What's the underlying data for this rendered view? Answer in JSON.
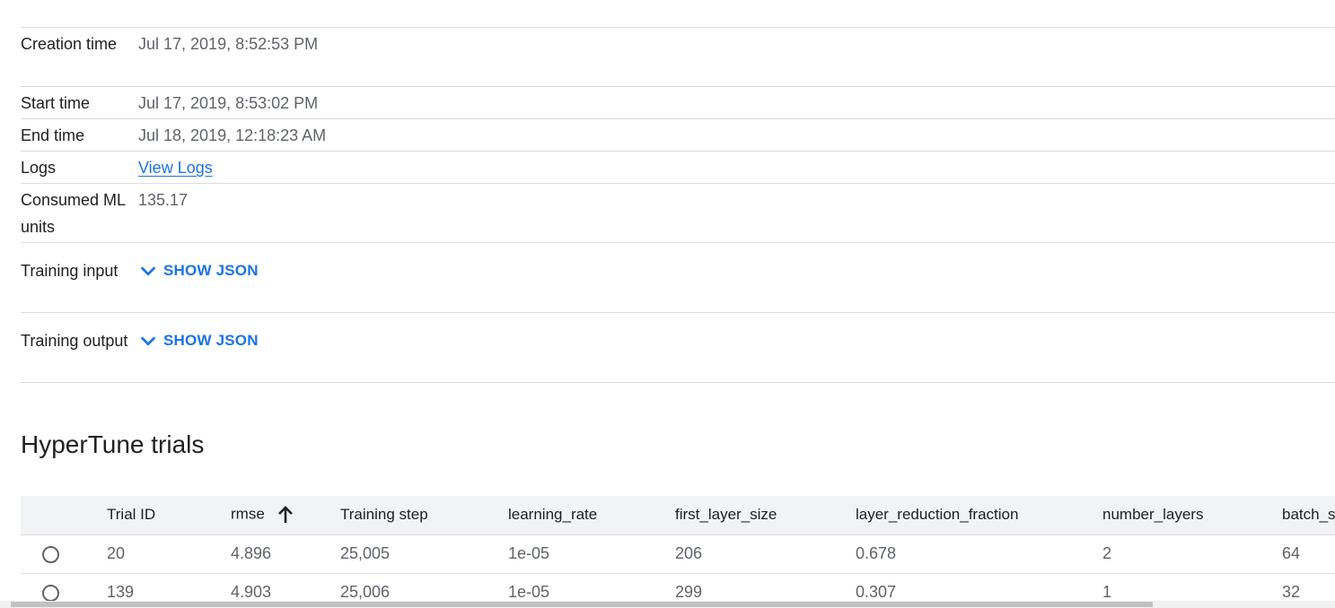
{
  "details": {
    "creation_time": {
      "label": "Creation time",
      "value": "Jul 17, 2019, 8:52:53 PM"
    },
    "start_time": {
      "label": "Start time",
      "value": "Jul 17, 2019, 8:53:02 PM"
    },
    "end_time": {
      "label": "End time",
      "value": "Jul 18, 2019, 12:18:23 AM"
    },
    "logs": {
      "label": "Logs",
      "link_text": "View Logs"
    },
    "consumed_ml_units": {
      "label": "Consumed ML units",
      "value": "135.17"
    },
    "training_input": {
      "label": "Training input",
      "button_label": "SHOW JSON"
    },
    "training_output": {
      "label": "Training output",
      "button_label": "SHOW JSON"
    }
  },
  "trials": {
    "title": "HyperTune trials",
    "columns": {
      "trial_id": "Trial ID",
      "rmse": "rmse",
      "training_step": "Training step",
      "learning_rate": "learning_rate",
      "first_layer_size": "first_layer_size",
      "layer_reduction_fraction": "layer_reduction_fraction",
      "number_layers": "number_layers",
      "batch_size": "batch_size"
    },
    "sort": {
      "column": "rmse",
      "direction": "ascending",
      "icon": "arrow-up-icon"
    },
    "rows": [
      {
        "trial_id": "20",
        "rmse": "4.896",
        "training_step": "25,005",
        "learning_rate": "1e-05",
        "first_layer_size": "206",
        "layer_reduction_fraction": "0.678",
        "number_layers": "2",
        "batch_size": "64"
      },
      {
        "trial_id": "139",
        "rmse": "4.903",
        "training_step": "25,006",
        "learning_rate": "1e-05",
        "first_layer_size": "299",
        "layer_reduction_fraction": "0.307",
        "number_layers": "1",
        "batch_size": "32"
      }
    ]
  },
  "colors": {
    "accent": "#1a73e8",
    "text_primary": "#202124",
    "text_secondary": "#5f6368",
    "divider": "#dadce0",
    "table_header_bg": "#f1f3f4"
  }
}
